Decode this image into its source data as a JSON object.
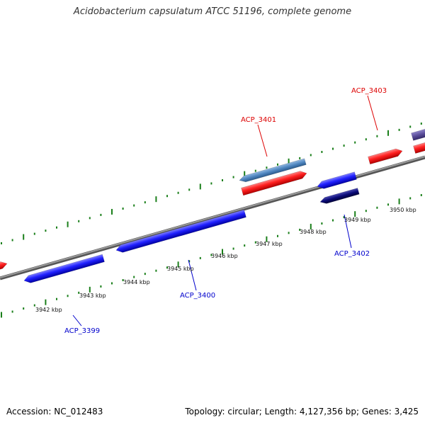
{
  "title": "Acidobacterium capsulatum ATCC 51196, complete genome",
  "footer": {
    "accession": "Accession: NC_012483",
    "summary": "Topology: circular; Length: 4,127,356 bp; Genes: 3,425"
  },
  "colors": {
    "backbone": "#7f7f7f",
    "tick": "#1a7f1a",
    "forward_gene": "#ff1f1f",
    "reverse_gene": "#1f1fff",
    "forward_label": "#dd0000",
    "reverse_label": "#0000cc",
    "light_blue_feature": "#4f86c0",
    "dark_navy_feature": "#0a0a78",
    "purple_feature": "#5b4e9a"
  },
  "kbp_labels": [
    "3942 kbp",
    "3943 kbp",
    "3944 kbp",
    "3945 kbp",
    "3946 kbp",
    "3947 kbp",
    "3948 kbp",
    "3949 kbp",
    "3950 kbp"
  ],
  "gene_labels": [
    "ACP_3399",
    "ACP_3400",
    "ACP_3401",
    "ACP_3402",
    "ACP_3403"
  ]
}
